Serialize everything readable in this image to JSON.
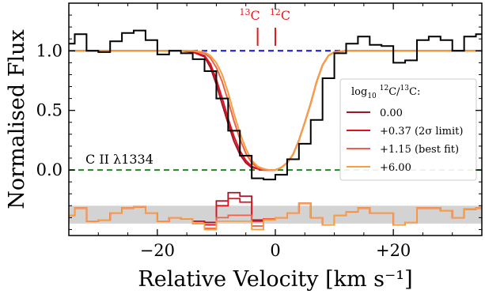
{
  "chart_data": {
    "type": "line",
    "xlabel": "Relative Velocity [km s⁻¹]",
    "ylabel": "Normalised Flux",
    "xlim": [
      -35,
      35
    ],
    "ylim": [
      -0.55,
      1.4
    ],
    "xticks": [
      -20,
      0,
      20
    ],
    "xtick_labels": [
      "−20",
      "0",
      "+20"
    ],
    "yticks": [
      0.0,
      0.5,
      1.0
    ],
    "ytick_labels": [
      "0.0",
      "0.5",
      "1.0"
    ],
    "grid": false,
    "continuum_level": 1.0,
    "zero_level": 0.0,
    "residual_offset": -0.4,
    "residual_band": [
      -0.45,
      -0.3
    ],
    "line_label": "C II λ1334",
    "isotope_markers": [
      {
        "label": "13C",
        "mass": "13",
        "element": "C",
        "x": -3,
        "color": "#e41a1c"
      },
      {
        "label": "12C",
        "mass": "12",
        "element": "C",
        "x": 0,
        "color": "#e41a1c"
      }
    ],
    "legend": {
      "title": "log10 12C/13C:",
      "title_parts": {
        "log": "log",
        "base": "10",
        "mass1": "12",
        "el1": "C/",
        "mass2": "13",
        "el2": "C:"
      },
      "placement": "right",
      "entries": [
        "0.00",
        "+0.37 (2σ limit)",
        "+1.15 (best fit)",
        "+6.00"
      ]
    },
    "observed": {
      "x": [
        -35,
        -34,
        -32,
        -30,
        -28,
        -26,
        -24,
        -22,
        -20,
        -18,
        -16,
        -14,
        -12,
        -10,
        -8,
        -6,
        -4,
        -2,
        0,
        2,
        4,
        6,
        8,
        10,
        12,
        14,
        16,
        18,
        20,
        22,
        24,
        26,
        28,
        30,
        32,
        34
      ],
      "y": [
        1.06,
        1.14,
        1.0,
        0.99,
        1.08,
        1.15,
        1.17,
        1.09,
        0.97,
        1.0,
        0.98,
        0.93,
        0.83,
        0.6,
        0.33,
        0.12,
        -0.07,
        -0.08,
        -0.04,
        0.09,
        0.22,
        0.42,
        0.77,
        0.98,
        1.06,
        1.12,
        1.05,
        1.04,
        0.9,
        0.92,
        1.09,
        1.12,
        1.09,
        1.0,
        1.12,
        1.14
      ]
    },
    "series": [
      {
        "name": "0.00",
        "color": "#a01628",
        "x": [
          -16,
          -14,
          -12,
          -11,
          -10,
          -9,
          -8,
          -7,
          -6,
          -5,
          -4,
          -3,
          -2,
          -1,
          0,
          1,
          2,
          3,
          4,
          5,
          6,
          7,
          8,
          9,
          10,
          12
        ],
        "y": [
          1.0,
          0.99,
          0.95,
          0.86,
          0.72,
          0.55,
          0.39,
          0.24,
          0.13,
          0.06,
          0.02,
          0.01,
          0.0,
          0.0,
          0.0,
          0.02,
          0.06,
          0.13,
          0.25,
          0.4,
          0.56,
          0.74,
          0.88,
          0.96,
          0.99,
          1.0
        ]
      },
      {
        "name": "+0.37 (2σ limit)",
        "color": "#e0101c",
        "x": [
          -16,
          -14,
          -12,
          -11,
          -10,
          -9,
          -8,
          -7,
          -6,
          -5,
          -4,
          -3,
          -2,
          -1,
          0,
          1,
          2,
          3,
          4,
          5,
          6,
          7,
          8,
          9,
          10,
          12
        ],
        "y": [
          1.0,
          0.99,
          0.96,
          0.89,
          0.76,
          0.6,
          0.43,
          0.28,
          0.16,
          0.08,
          0.03,
          0.01,
          0.0,
          0.0,
          0.0,
          0.02,
          0.06,
          0.13,
          0.25,
          0.4,
          0.56,
          0.74,
          0.88,
          0.96,
          0.99,
          1.0
        ]
      },
      {
        "name": "+1.15 (best fit)",
        "color": "#f0604a",
        "x": [
          -16,
          -14,
          -12,
          -11,
          -10,
          -9,
          -8,
          -7,
          -6,
          -5,
          -4,
          -3,
          -2,
          -1,
          0,
          1,
          2,
          3,
          4,
          5,
          6,
          7,
          8,
          9,
          10,
          12
        ],
        "y": [
          1.0,
          1.0,
          0.98,
          0.94,
          0.86,
          0.74,
          0.58,
          0.41,
          0.26,
          0.14,
          0.06,
          0.02,
          0.0,
          0.0,
          0.0,
          0.02,
          0.06,
          0.13,
          0.25,
          0.4,
          0.56,
          0.74,
          0.88,
          0.96,
          0.99,
          1.0
        ]
      },
      {
        "name": "+6.00",
        "color": "#f8a040",
        "x": [
          -16,
          -14,
          -12,
          -11,
          -10,
          -9,
          -8,
          -7,
          -6,
          -5,
          -4,
          -3,
          -2,
          -1,
          0,
          1,
          2,
          3,
          4,
          5,
          6,
          7,
          8,
          9,
          10,
          12
        ],
        "y": [
          1.0,
          1.0,
          0.99,
          0.96,
          0.9,
          0.8,
          0.65,
          0.47,
          0.31,
          0.18,
          0.08,
          0.03,
          0.01,
          0.0,
          0.0,
          0.02,
          0.06,
          0.13,
          0.25,
          0.4,
          0.56,
          0.74,
          0.88,
          0.96,
          0.99,
          1.0
        ]
      }
    ],
    "residuals": [
      {
        "name": "0.00",
        "color": "#a01628",
        "x": [
          -35,
          -34,
          -32,
          -30,
          -28,
          -26,
          -24,
          -22,
          -20,
          -18,
          -16,
          -14,
          -12,
          -10,
          -8,
          -6,
          -4,
          -2,
          0,
          2,
          4,
          6,
          8,
          10,
          12,
          14,
          16,
          18,
          20,
          22,
          24,
          26,
          28,
          30,
          32,
          34
        ],
        "y": [
          -0.38,
          -0.32,
          -0.43,
          -0.42,
          -0.36,
          -0.32,
          -0.31,
          -0.36,
          -0.43,
          -0.4,
          -0.41,
          -0.43,
          -0.44,
          -0.26,
          -0.19,
          -0.22,
          -0.42,
          -0.41,
          -0.4,
          -0.36,
          -0.28,
          -0.4,
          -0.46,
          -0.38,
          -0.35,
          -0.32,
          -0.36,
          -0.36,
          -0.46,
          -0.44,
          -0.32,
          -0.32,
          -0.34,
          -0.4,
          -0.33,
          -0.32
        ]
      },
      {
        "name": "+0.37 (2σ limit)",
        "color": "#e0101c",
        "x": [
          -35,
          -34,
          -32,
          -30,
          -28,
          -26,
          -24,
          -22,
          -20,
          -18,
          -16,
          -14,
          -12,
          -10,
          -8,
          -6,
          -4,
          -2,
          0,
          2,
          4,
          6,
          8,
          10,
          12,
          14,
          16,
          18,
          20,
          22,
          24,
          26,
          28,
          30,
          32,
          34
        ],
        "y": [
          -0.38,
          -0.32,
          -0.43,
          -0.42,
          -0.36,
          -0.32,
          -0.31,
          -0.36,
          -0.43,
          -0.4,
          -0.41,
          -0.43,
          -0.46,
          -0.3,
          -0.24,
          -0.27,
          -0.43,
          -0.41,
          -0.4,
          -0.36,
          -0.28,
          -0.4,
          -0.46,
          -0.38,
          -0.35,
          -0.32,
          -0.36,
          -0.36,
          -0.46,
          -0.44,
          -0.32,
          -0.32,
          -0.34,
          -0.4,
          -0.33,
          -0.32
        ]
      },
      {
        "name": "+1.15 (best fit)",
        "color": "#f0604a",
        "x": [
          -35,
          -34,
          -32,
          -30,
          -28,
          -26,
          -24,
          -22,
          -20,
          -18,
          -16,
          -14,
          -12,
          -10,
          -8,
          -6,
          -4,
          -2,
          0,
          2,
          4,
          6,
          8,
          10,
          12,
          14,
          16,
          18,
          20,
          22,
          24,
          26,
          28,
          30,
          32,
          34
        ],
        "y": [
          -0.38,
          -0.32,
          -0.43,
          -0.42,
          -0.36,
          -0.32,
          -0.31,
          -0.36,
          -0.43,
          -0.4,
          -0.41,
          -0.45,
          -0.49,
          -0.4,
          -0.38,
          -0.38,
          -0.47,
          -0.41,
          -0.4,
          -0.36,
          -0.28,
          -0.4,
          -0.46,
          -0.38,
          -0.35,
          -0.32,
          -0.36,
          -0.36,
          -0.46,
          -0.44,
          -0.32,
          -0.32,
          -0.34,
          -0.4,
          -0.33,
          -0.32
        ]
      },
      {
        "name": "+6.00",
        "color": "#f8a040",
        "x": [
          -35,
          -34,
          -32,
          -30,
          -28,
          -26,
          -24,
          -22,
          -20,
          -18,
          -16,
          -14,
          -12,
          -10,
          -8,
          -6,
          -4,
          -2,
          0,
          2,
          4,
          6,
          8,
          10,
          12,
          14,
          16,
          18,
          20,
          22,
          24,
          26,
          28,
          30,
          32,
          34
        ],
        "y": [
          -0.38,
          -0.32,
          -0.43,
          -0.42,
          -0.36,
          -0.32,
          -0.31,
          -0.36,
          -0.43,
          -0.4,
          -0.41,
          -0.45,
          -0.5,
          -0.43,
          -0.43,
          -0.43,
          -0.5,
          -0.42,
          -0.4,
          -0.36,
          -0.28,
          -0.4,
          -0.46,
          -0.38,
          -0.35,
          -0.32,
          -0.36,
          -0.36,
          -0.46,
          -0.44,
          -0.32,
          -0.32,
          -0.34,
          -0.4,
          -0.33,
          -0.32
        ]
      }
    ]
  }
}
